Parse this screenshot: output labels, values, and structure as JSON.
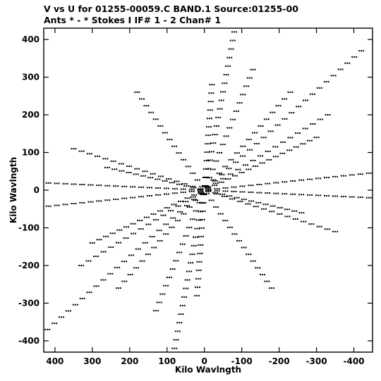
{
  "header": {
    "line1": "V vs U for 01255-00059.C BAND.1   Source:01255-00",
    "line2": "Ants * - *    Stokes I   IF# 1 - 2  Chan# 1"
  },
  "colors": {
    "foreground": "#000000",
    "background": "#ffffff"
  },
  "chart_data": {
    "type": "scatter",
    "title": "V vs U for 01255-00059.C BAND.1   Source:01255-00",
    "subtitle": "Ants * - *    Stokes I   IF# 1 - 2  Chan# 1",
    "xlabel": "Kilo Wavlngth",
    "ylabel": "Kilo Wavlngth",
    "xlim": [
      430,
      -450
    ],
    "ylim": [
      -430,
      430
    ],
    "x_reversed": true,
    "xticks": [
      400,
      300,
      200,
      100,
      0,
      -100,
      -200,
      -300,
      -400
    ],
    "xtick_labels": [
      "400",
      "300",
      "200",
      "100",
      "0",
      "-100",
      "-200",
      "-300",
      "-400"
    ],
    "yticks": [
      -400,
      -300,
      -200,
      -100,
      0,
      100,
      200,
      300,
      400
    ],
    "ytick_labels": [
      "-400",
      "-300",
      "-200",
      "-100",
      "0",
      "100",
      "200",
      "300",
      "400"
    ],
    "grid": false,
    "legend": "none",
    "tracks": [
      {
        "from": [
          -420,
          370
        ],
        "to": [
          420,
          -370
        ],
        "n": 46
      },
      {
        "from": [
          -80,
          420
        ],
        "to": [
          80,
          -420
        ],
        "n": 38
      },
      {
        "from": [
          -300,
          140
        ],
        "to": [
          300,
          -140
        ],
        "n": 34
      },
      {
        "from": [
          -440,
          45
        ],
        "to": [
          440,
          -45
        ],
        "n": 40
      },
      {
        "from": [
          -440,
          -20
        ],
        "to": [
          440,
          20
        ],
        "n": 40
      },
      {
        "from": [
          -230,
          260
        ],
        "to": [
          230,
          -260
        ],
        "n": 30
      },
      {
        "from": [
          -350,
          -110
        ],
        "to": [
          350,
          110
        ],
        "n": 34
      },
      {
        "from": [
          -180,
          -260
        ],
        "to": [
          180,
          260
        ],
        "n": 30
      },
      {
        "from": [
          -20,
          280
        ],
        "to": [
          20,
          -280
        ],
        "n": 26
      },
      {
        "from": [
          -130,
          320
        ],
        "to": [
          130,
          -320
        ],
        "n": 30
      },
      {
        "from": [
          -260,
          -60
        ],
        "to": [
          260,
          60
        ],
        "n": 28
      },
      {
        "from": [
          -330,
          200
        ],
        "to": [
          330,
          -200
        ],
        "n": 34
      }
    ]
  }
}
